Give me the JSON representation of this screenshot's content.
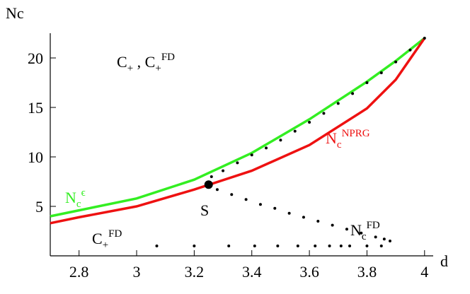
{
  "chart_data": {
    "type": "line",
    "x_label": "d",
    "y_label": "Nc",
    "xlim": [
      2.7,
      4.03
    ],
    "ylim": [
      0,
      22.5
    ],
    "xticks": [
      2.8,
      3,
      3.2,
      3.4,
      3.6,
      3.8,
      4
    ],
    "yticks": [
      5,
      10,
      15,
      20
    ],
    "series": [
      {
        "style": "line",
        "color": "#33ee22",
        "x": [
          2.7,
          2.8,
          3.0,
          3.2,
          3.4,
          3.6,
          3.8,
          3.9,
          4.0
        ],
        "values": [
          4.0,
          4.6,
          5.8,
          7.7,
          10.4,
          13.8,
          17.6,
          19.7,
          22.0
        ]
      },
      {
        "style": "line",
        "color": "#ee1111",
        "x": [
          2.7,
          2.8,
          3.0,
          3.2,
          3.4,
          3.6,
          3.8,
          3.9,
          4.0
        ],
        "values": [
          3.3,
          3.9,
          5.0,
          6.7,
          8.6,
          11.2,
          14.9,
          17.8,
          22.0
        ]
      },
      {
        "style": "dots",
        "color": "#000000",
        "x": [
          3.26,
          3.3,
          3.35,
          3.4,
          3.45,
          3.5,
          3.55,
          3.6,
          3.65,
          3.7,
          3.75,
          3.8,
          3.85,
          3.9,
          3.95,
          4.0
        ],
        "values": [
          8.0,
          8.6,
          9.4,
          10.2,
          10.9,
          11.7,
          12.6,
          13.5,
          14.4,
          15.4,
          16.4,
          17.5,
          18.5,
          19.6,
          20.8,
          22.0
        ]
      },
      {
        "style": "dots",
        "color": "#000000",
        "x": [
          3.28,
          3.33,
          3.38,
          3.43,
          3.48,
          3.53,
          3.58,
          3.63,
          3.68,
          3.73,
          3.78,
          3.83,
          3.86,
          3.88
        ],
        "values": [
          6.7,
          6.2,
          5.7,
          5.2,
          4.8,
          4.3,
          3.9,
          3.5,
          3.1,
          2.7,
          2.3,
          1.9,
          1.7,
          1.5
        ]
      },
      {
        "style": "dots",
        "color": "#000000",
        "x": [
          3.07,
          3.2,
          3.32,
          3.41,
          3.49,
          3.56,
          3.62,
          3.67,
          3.71,
          3.74,
          3.8,
          3.85
        ],
        "values": [
          1.0,
          1.0,
          1.0,
          1.0,
          1.0,
          1.0,
          1.0,
          1.0,
          1.0,
          1.0,
          1.0,
          1.0
        ]
      },
      {
        "style": "point",
        "color": "#000000",
        "x": [
          3.25
        ],
        "values": [
          7.2
        ]
      }
    ],
    "annotations": [
      {
        "color": "#000000",
        "parts": [
          {
            "text": "C"
          },
          {
            "text": "+",
            "shift": "sub"
          },
          {
            "text": " , C"
          },
          {
            "text": "+",
            "shift": "sub"
          },
          {
            "text": "FD",
            "shift": "sup"
          }
        ]
      },
      {
        "color": "#33ee22",
        "parts": [
          {
            "text": "N"
          },
          {
            "text": "c",
            "shift": "sub"
          },
          {
            "text": "ϵ",
            "shift": "sup"
          }
        ]
      },
      {
        "color": "#ee1111",
        "parts": [
          {
            "text": "N"
          },
          {
            "text": "c",
            "shift": "sub"
          },
          {
            "text": "NPRG",
            "shift": "sup"
          }
        ]
      },
      {
        "color": "#000000",
        "parts": [
          {
            "text": "S"
          }
        ]
      },
      {
        "color": "#000000",
        "parts": [
          {
            "text": "N"
          },
          {
            "text": "c",
            "shift": "sub"
          },
          {
            "text": "FD",
            "shift": "sup"
          }
        ]
      },
      {
        "color": "#000000",
        "parts": [
          {
            "text": "C"
          },
          {
            "text": "+",
            "shift": "sub"
          },
          {
            "text": "FD",
            "shift": "sup"
          }
        ]
      }
    ]
  }
}
